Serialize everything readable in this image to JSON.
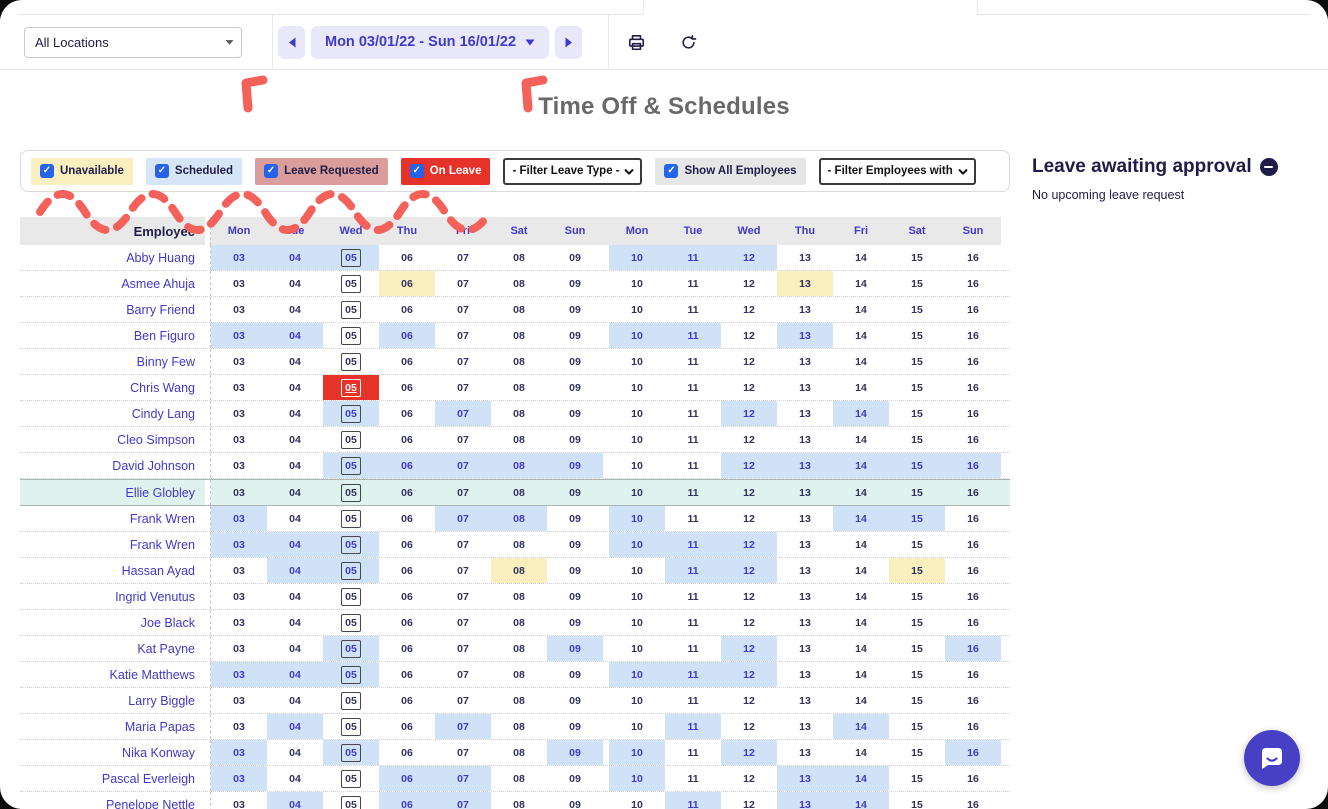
{
  "page_title": "Time Off & Schedules",
  "toolbar": {
    "location_filter_value": "All Locations",
    "date_range_label": "Mon 03/01/22 - Sun 16/01/22",
    "prev_icon": "chevron-left",
    "next_icon": "chevron-right",
    "print_icon": "printer",
    "refresh_icon": "refresh"
  },
  "legend": {
    "items": [
      {
        "label": "Unavailable",
        "checked": true,
        "bg": "#FAEFBE",
        "text": "#1F1D47"
      },
      {
        "label": "Scheduled",
        "checked": true,
        "bg": "#D7E5F8",
        "text": "#1F1D47"
      },
      {
        "label": "Leave Requested",
        "checked": true,
        "bg": "#DB9C9C",
        "text": "#1F1D47"
      },
      {
        "label": "On Leave",
        "checked": true,
        "bg": "#E5332A",
        "text": "#FFFFFF"
      }
    ],
    "leave_type_filter_value": "- Filter Leave Type -",
    "show_all_employees": {
      "label": "Show All Employees",
      "checked": true,
      "bg": "#E6E6E6",
      "text": "#1F1D47"
    },
    "employees_filter_value": "- Filter Employees with"
  },
  "approval": {
    "title": "Leave awaiting approval",
    "empty_message": "No upcoming leave request"
  },
  "schedule": {
    "employee_header": "Employee",
    "day_headers": [
      "Mon",
      "Tue",
      "Wed",
      "Thu",
      "Fri",
      "Sat",
      "Sun",
      "Mon",
      "Tue",
      "Wed",
      "Thu",
      "Fri",
      "Sat",
      "Sun"
    ],
    "dates": [
      "03",
      "04",
      "05",
      "06",
      "07",
      "08",
      "09",
      "10",
      "11",
      "12",
      "13",
      "14",
      "15",
      "16"
    ],
    "today_index": 2,
    "cell_state_legend": {
      "w": "none",
      "b": "scheduled",
      "y": "unavailable",
      "r": "on-leave",
      "m": "highlighted-row"
    },
    "rows": [
      {
        "name": "Abby Huang",
        "cells": [
          "b",
          "b",
          "b",
          "w",
          "w",
          "w",
          "w",
          "b",
          "b",
          "b",
          "w",
          "w",
          "w",
          "w"
        ]
      },
      {
        "name": "Asmee Ahuja",
        "cells": [
          "w",
          "w",
          "w",
          "y",
          "w",
          "w",
          "w",
          "w",
          "w",
          "w",
          "y",
          "w",
          "w",
          "w"
        ]
      },
      {
        "name": "Barry Friend",
        "cells": [
          "w",
          "w",
          "w",
          "w",
          "w",
          "w",
          "w",
          "w",
          "w",
          "w",
          "w",
          "w",
          "w",
          "w"
        ]
      },
      {
        "name": "Ben Figuro",
        "cells": [
          "b",
          "b",
          "w",
          "b",
          "w",
          "w",
          "w",
          "b",
          "b",
          "w",
          "b",
          "w",
          "w",
          "w"
        ]
      },
      {
        "name": "Binny Few",
        "cells": [
          "w",
          "w",
          "w",
          "w",
          "w",
          "w",
          "w",
          "w",
          "w",
          "w",
          "w",
          "w",
          "w",
          "w"
        ]
      },
      {
        "name": "Chris Wang",
        "cells": [
          "w",
          "w",
          "r",
          "w",
          "w",
          "w",
          "w",
          "w",
          "w",
          "w",
          "w",
          "w",
          "w",
          "w"
        ]
      },
      {
        "name": "Cindy Lang",
        "cells": [
          "w",
          "w",
          "b",
          "w",
          "b",
          "w",
          "w",
          "w",
          "w",
          "b",
          "w",
          "b",
          "w",
          "w"
        ]
      },
      {
        "name": "Cleo Simpson",
        "cells": [
          "w",
          "w",
          "w",
          "w",
          "w",
          "w",
          "w",
          "w",
          "w",
          "w",
          "w",
          "w",
          "w",
          "w"
        ]
      },
      {
        "name": "David Johnson",
        "cells": [
          "w",
          "w",
          "b",
          "b",
          "b",
          "b",
          "b",
          "w",
          "w",
          "b",
          "b",
          "b",
          "b",
          "b"
        ]
      },
      {
        "name": "Ellie Globley",
        "cells": [
          "m",
          "m",
          "m",
          "m",
          "m",
          "m",
          "m",
          "m",
          "m",
          "m",
          "m",
          "m",
          "m",
          "m"
        ]
      },
      {
        "name": "Frank Wren",
        "cells": [
          "b",
          "w",
          "w",
          "w",
          "b",
          "b",
          "w",
          "b",
          "w",
          "w",
          "w",
          "b",
          "b",
          "w"
        ]
      },
      {
        "name": "Frank Wren",
        "cells": [
          "b",
          "b",
          "b",
          "w",
          "w",
          "w",
          "w",
          "b",
          "b",
          "b",
          "w",
          "w",
          "w",
          "w"
        ]
      },
      {
        "name": "Hassan Ayad",
        "cells": [
          "w",
          "b",
          "b",
          "w",
          "w",
          "y",
          "w",
          "w",
          "b",
          "b",
          "w",
          "w",
          "y",
          "w"
        ]
      },
      {
        "name": "Ingrid Venutus",
        "cells": [
          "w",
          "w",
          "w",
          "w",
          "w",
          "w",
          "w",
          "w",
          "w",
          "w",
          "w",
          "w",
          "w",
          "w"
        ]
      },
      {
        "name": "Joe Black",
        "cells": [
          "w",
          "w",
          "w",
          "w",
          "w",
          "w",
          "w",
          "w",
          "w",
          "w",
          "w",
          "w",
          "w",
          "w"
        ]
      },
      {
        "name": "Kat Payne",
        "cells": [
          "w",
          "w",
          "b",
          "w",
          "w",
          "w",
          "b",
          "w",
          "w",
          "b",
          "w",
          "w",
          "w",
          "b"
        ]
      },
      {
        "name": "Katie Matthews",
        "cells": [
          "b",
          "b",
          "b",
          "w",
          "w",
          "w",
          "w",
          "b",
          "b",
          "b",
          "w",
          "w",
          "w",
          "w"
        ]
      },
      {
        "name": "Larry Biggle",
        "cells": [
          "w",
          "w",
          "w",
          "w",
          "w",
          "w",
          "w",
          "w",
          "w",
          "w",
          "w",
          "w",
          "w",
          "w"
        ]
      },
      {
        "name": "Maria Papas",
        "cells": [
          "w",
          "b",
          "w",
          "w",
          "b",
          "w",
          "w",
          "w",
          "b",
          "w",
          "w",
          "b",
          "w",
          "w"
        ]
      },
      {
        "name": "Nika Konway",
        "cells": [
          "b",
          "w",
          "b",
          "w",
          "w",
          "w",
          "b",
          "b",
          "w",
          "b",
          "w",
          "w",
          "w",
          "b"
        ]
      },
      {
        "name": "Pascal Everleigh",
        "cells": [
          "b",
          "w",
          "w",
          "b",
          "b",
          "w",
          "w",
          "b",
          "w",
          "w",
          "b",
          "b",
          "w",
          "w"
        ]
      },
      {
        "name": "Penelope Nettle",
        "cells": [
          "w",
          "b",
          "w",
          "b",
          "b",
          "w",
          "w",
          "w",
          "b",
          "w",
          "b",
          "b",
          "w",
          "w"
        ]
      }
    ]
  },
  "colors": {
    "accent": "#4338CA",
    "toolbar_button_bg": "#E9E8F8",
    "toolbar_button_text": "#3F3ACB",
    "scheduled_cell": "#CFE2F8",
    "unavailable_cell": "#FAEFBE",
    "on_leave_cell": "#E5332A",
    "highlighted_row": "#DFF2EE",
    "annotation": "#F4615B",
    "chat_button": "#4840C4",
    "checkbox": "#2563EB"
  },
  "chat": {
    "icon": "chat-bubble-smile"
  }
}
